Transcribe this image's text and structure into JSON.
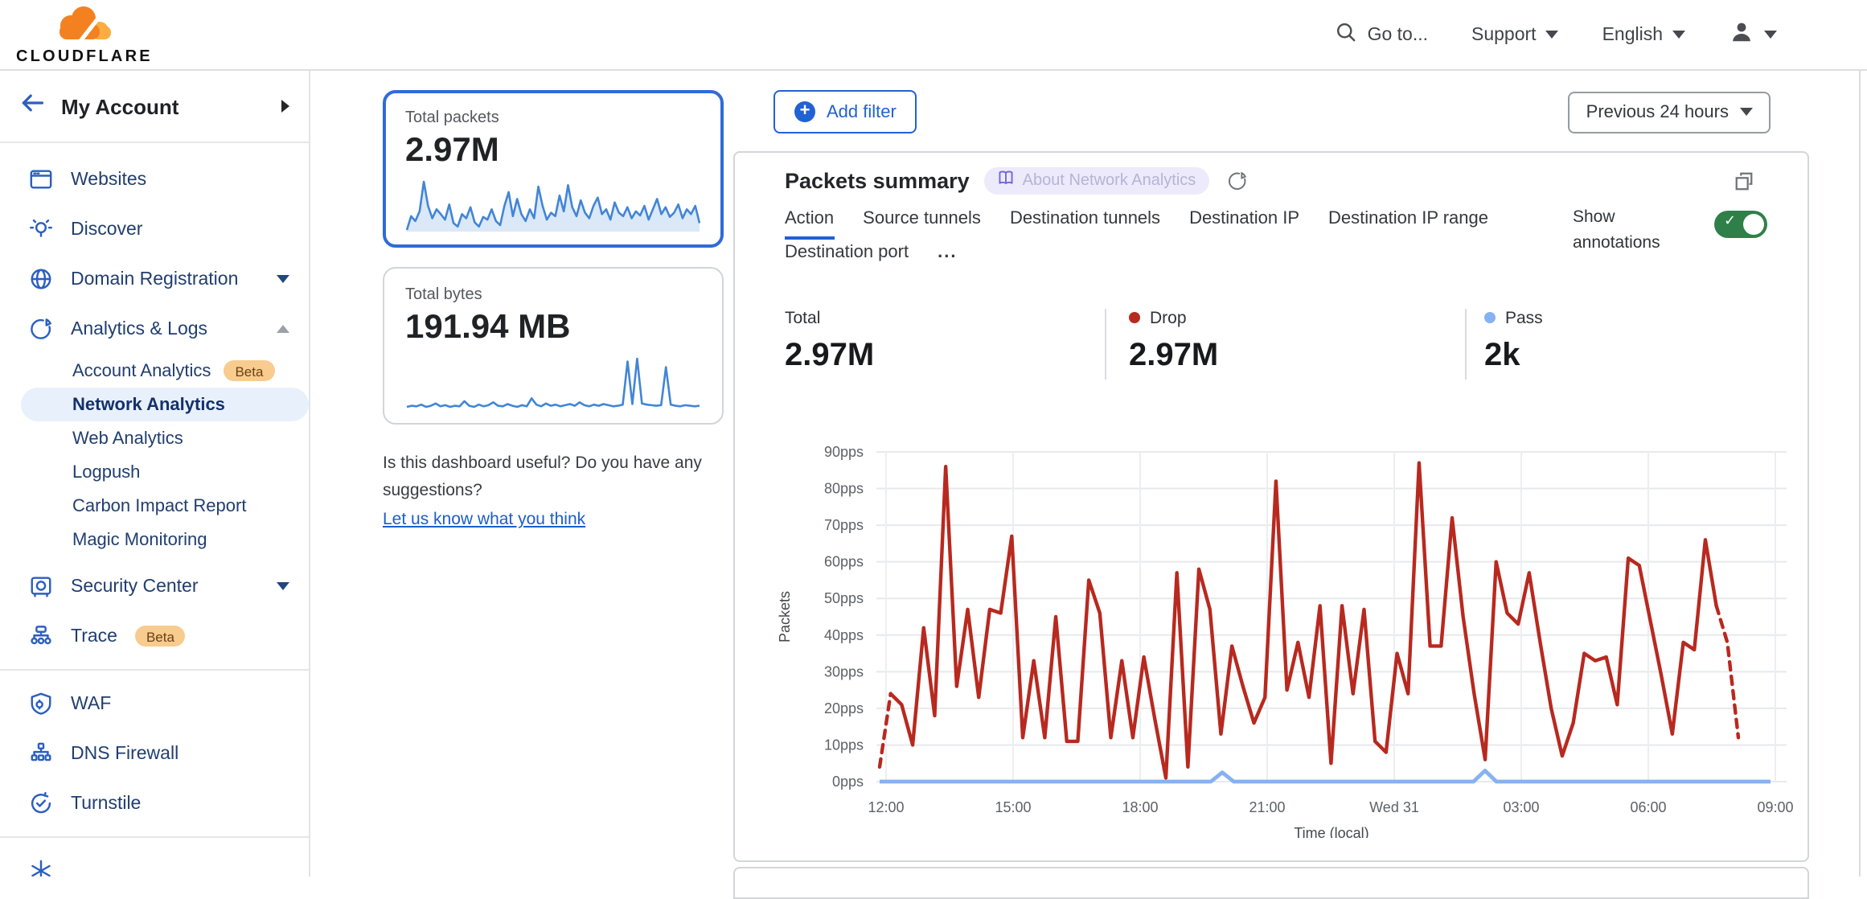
{
  "topbar": {
    "brand": "CLOUDFLARE",
    "goto": "Go to...",
    "support": "Support",
    "language": "English"
  },
  "sidebar": {
    "title": "My Account",
    "items": [
      {
        "label": "Websites"
      },
      {
        "label": "Discover"
      },
      {
        "label": "Domain Registration"
      },
      {
        "label": "Analytics & Logs"
      },
      {
        "label": "Security Center"
      },
      {
        "label": "Trace",
        "badge": "Beta"
      },
      {
        "label": "WAF"
      },
      {
        "label": "DNS Firewall"
      },
      {
        "label": "Turnstile"
      }
    ],
    "analytics_sub": [
      {
        "label": "Account Analytics",
        "badge": "Beta"
      },
      {
        "label": "Network Analytics",
        "selected": true
      },
      {
        "label": "Web Analytics"
      },
      {
        "label": "Logpush"
      },
      {
        "label": "Carbon Impact Report"
      },
      {
        "label": "Magic Monitoring"
      }
    ]
  },
  "metrics": {
    "packets": {
      "label": "Total packets",
      "value": "2.97M"
    },
    "bytes": {
      "label": "Total bytes",
      "value": "191.94 MB"
    }
  },
  "feedback": {
    "question": "Is this dashboard useful? Do you have any suggestions?",
    "link": "Let us know what you think"
  },
  "toolbar": {
    "add_filter": "Add filter",
    "time_range": "Previous 24 hours"
  },
  "panel": {
    "title": "Packets summary",
    "about_badge": "About Network Analytics",
    "tabs": [
      "Action",
      "Source tunnels",
      "Destination tunnels",
      "Destination IP",
      "Destination IP range",
      "Destination port"
    ],
    "more": "...",
    "active_tab": "Action",
    "annotations_label": "Show annotations",
    "annotations_on": true,
    "stats": [
      {
        "label": "Total",
        "value": "2.97M",
        "dot_color": null
      },
      {
        "label": "Drop",
        "value": "2.97M",
        "dot_color": "#b8291f"
      },
      {
        "label": "Pass",
        "value": "2k",
        "dot_color": "#85b2f2"
      }
    ]
  },
  "colors": {
    "accent_blue": "#2062d3",
    "selected_card_border": "#2f6bd9",
    "drop_red": "#b8291f",
    "pass_blue": "#85b2f2",
    "toggle_green": "#2e8048",
    "sparkline_blue": "#4285d6",
    "beta_badge_bg": "#f8cb8e"
  },
  "chart_data": [
    {
      "id": "packets-summary-chart",
      "type": "line",
      "title": "Packets summary",
      "xlabel": "Time (local)",
      "ylabel": "Packets",
      "ylim": [
        0,
        90
      ],
      "ytick_step": 10,
      "ytick_suffix": "pps",
      "grid": true,
      "xticks": [
        "12:00",
        "15:00",
        "18:00",
        "21:00",
        "Wed 31",
        "03:00",
        "06:00",
        "09:00"
      ],
      "series": [
        {
          "name": "Drop",
          "color": "#b8291f",
          "dashed_head_points": 2,
          "dashed_tail_points": 3,
          "values": [
            4,
            24,
            21,
            10,
            42,
            18,
            86,
            26,
            47,
            23,
            47,
            46,
            67,
            12,
            33,
            12,
            45,
            11,
            11,
            55,
            46,
            12,
            33,
            12,
            34,
            17,
            1,
            57,
            4,
            58,
            47,
            13,
            37,
            26,
            16,
            23,
            82,
            25,
            38,
            23,
            48,
            5,
            48,
            24,
            47,
            11,
            8,
            35,
            24,
            87,
            37,
            37,
            72,
            45,
            24,
            6,
            60,
            46,
            43,
            57,
            38,
            20,
            7,
            16,
            35,
            33,
            34,
            21,
            61,
            59,
            44,
            29,
            13,
            38,
            36,
            66,
            48,
            38,
            12
          ]
        },
        {
          "name": "Pass",
          "color": "#85b2f2",
          "values": [
            0,
            0,
            0,
            0,
            0,
            0,
            0,
            0,
            0,
            0,
            0,
            0,
            0,
            0,
            0,
            0,
            0,
            0,
            0,
            0,
            0,
            0,
            0,
            0,
            0,
            0,
            0,
            0,
            0,
            0,
            2.5,
            0,
            0,
            0,
            0,
            0,
            0,
            0,
            0,
            0,
            0,
            0,
            0,
            0,
            0,
            0,
            0,
            0,
            0,
            0,
            0,
            0,
            0,
            3,
            0,
            0,
            0,
            0,
            0,
            0,
            0,
            0,
            0,
            0,
            0,
            0,
            0,
            0,
            0,
            0,
            0,
            0,
            0,
            0,
            0,
            0,
            0,
            0,
            0
          ]
        }
      ]
    },
    {
      "id": "total-packets-spark",
      "type": "area",
      "color": "#4285d6",
      "fill": "#dbe8f8",
      "values": [
        25,
        45,
        38,
        52,
        95,
        60,
        42,
        55,
        48,
        40,
        62,
        35,
        30,
        48,
        42,
        58,
        36,
        30,
        44,
        40,
        55,
        38,
        32,
        60,
        80,
        45,
        70,
        48,
        38,
        55,
        42,
        88,
        60,
        40,
        50,
        45,
        75,
        52,
        90,
        58,
        45,
        68,
        50,
        42,
        60,
        72,
        48,
        55,
        40,
        65,
        50,
        45,
        58,
        42,
        52,
        46,
        60,
        40,
        55,
        70,
        48,
        58,
        44,
        50,
        62,
        42,
        55,
        48,
        60,
        35
      ]
    },
    {
      "id": "total-bytes-spark",
      "type": "line",
      "color": "#4285d6",
      "values": [
        10,
        12,
        11,
        14,
        10,
        12,
        16,
        11,
        13,
        10,
        12,
        11,
        20,
        12,
        10,
        14,
        11,
        13,
        18,
        12,
        11,
        15,
        12,
        10,
        13,
        11,
        25,
        14,
        11,
        16,
        12,
        14,
        11,
        13,
        15,
        12,
        18,
        13,
        11,
        14,
        12,
        15,
        13,
        11,
        12,
        14,
        90,
        15,
        95,
        16,
        14,
        13,
        12,
        13,
        80,
        14,
        12,
        11,
        13,
        12,
        11,
        12
      ]
    }
  ]
}
